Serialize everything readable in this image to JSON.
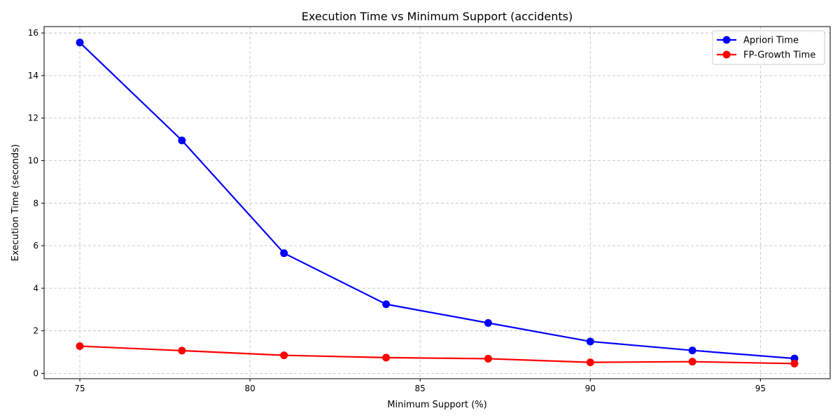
{
  "chart_data": {
    "type": "line",
    "title": "Execution Time vs Minimum Support (accidents)",
    "xlabel": "Minimum Support (%)",
    "ylabel": "Execution Time (seconds)",
    "x": [
      75,
      78,
      81,
      84,
      87,
      90,
      93,
      96
    ],
    "xlim": [
      73.95,
      97.05
    ],
    "ylim": [
      -0.25,
      16.3
    ],
    "xticks": [
      75,
      80,
      85,
      90,
      95
    ],
    "yticks": [
      0,
      2,
      4,
      6,
      8,
      10,
      12,
      14,
      16
    ],
    "grid": true,
    "legend_position": "top-right",
    "series": [
      {
        "name": "Apriori Time",
        "color": "#0000ff",
        "values": [
          15.55,
          10.95,
          5.65,
          3.25,
          2.37,
          1.5,
          1.08,
          0.7
        ]
      },
      {
        "name": "FP-Growth Time",
        "color": "#ff0000",
        "values": [
          1.28,
          1.07,
          0.85,
          0.74,
          0.69,
          0.52,
          0.55,
          0.46
        ]
      }
    ]
  }
}
